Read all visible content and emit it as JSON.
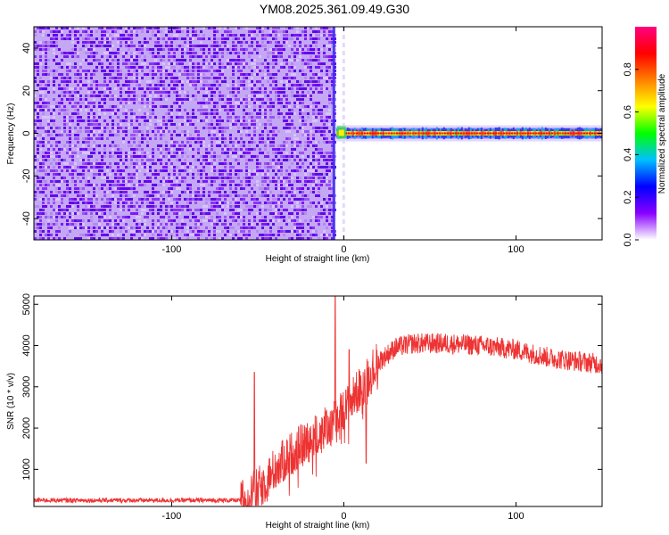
{
  "title": "YM08.2025.361.09.49.G30",
  "chart_data": [
    {
      "type": "heatmap",
      "xlabel": "Height of straight line (km)",
      "ylabel": "Frequency (Hz)",
      "xlim": [
        -180,
        150
      ],
      "ylim": [
        -50,
        50
      ],
      "xticks": [
        -100,
        0,
        100
      ],
      "yticks": [
        -40,
        -20,
        0,
        20,
        40
      ],
      "noise_region_x": [
        -180,
        -5
      ],
      "signal_line_frequency": 0,
      "colorbar": {
        "label": "Normalized spectral amplitude",
        "range": [
          0,
          1
        ],
        "ticks": [
          "0.0",
          "0.2",
          "0.4",
          "0.6",
          "0.8"
        ],
        "colormap": [
          "#ffffff",
          "#8800ff",
          "#0000ff",
          "#00c0ff",
          "#00ff00",
          "#ffff00",
          "#ff8000",
          "#ff0000",
          "#ff0080"
        ]
      }
    },
    {
      "type": "line",
      "xlabel": "Height of straight line (km)",
      "ylabel": "SNR (10 * v/v)",
      "xlim": [
        -180,
        150
      ],
      "ylim": [
        100,
        5200
      ],
      "xticks": [
        -100,
        0,
        100
      ],
      "yticks": [
        1000,
        2000,
        3000,
        4000,
        5000
      ],
      "color": "#ee3333",
      "profile": {
        "x": [
          -180,
          -60,
          -50,
          -40,
          -30,
          -20,
          -10,
          0,
          10,
          20,
          30,
          40,
          60,
          80,
          100,
          120,
          150
        ],
        "y": [
          250,
          250,
          500,
          1000,
          1400,
          1700,
          2000,
          2400,
          3000,
          3600,
          3950,
          4050,
          4050,
          4000,
          3900,
          3700,
          3550
        ]
      },
      "spikes": [
        {
          "x": -52,
          "y": 3350
        },
        {
          "x": -5,
          "y": 5200
        },
        {
          "x": 3,
          "y": 3900
        },
        {
          "x": 13,
          "y": 1150
        }
      ]
    }
  ]
}
